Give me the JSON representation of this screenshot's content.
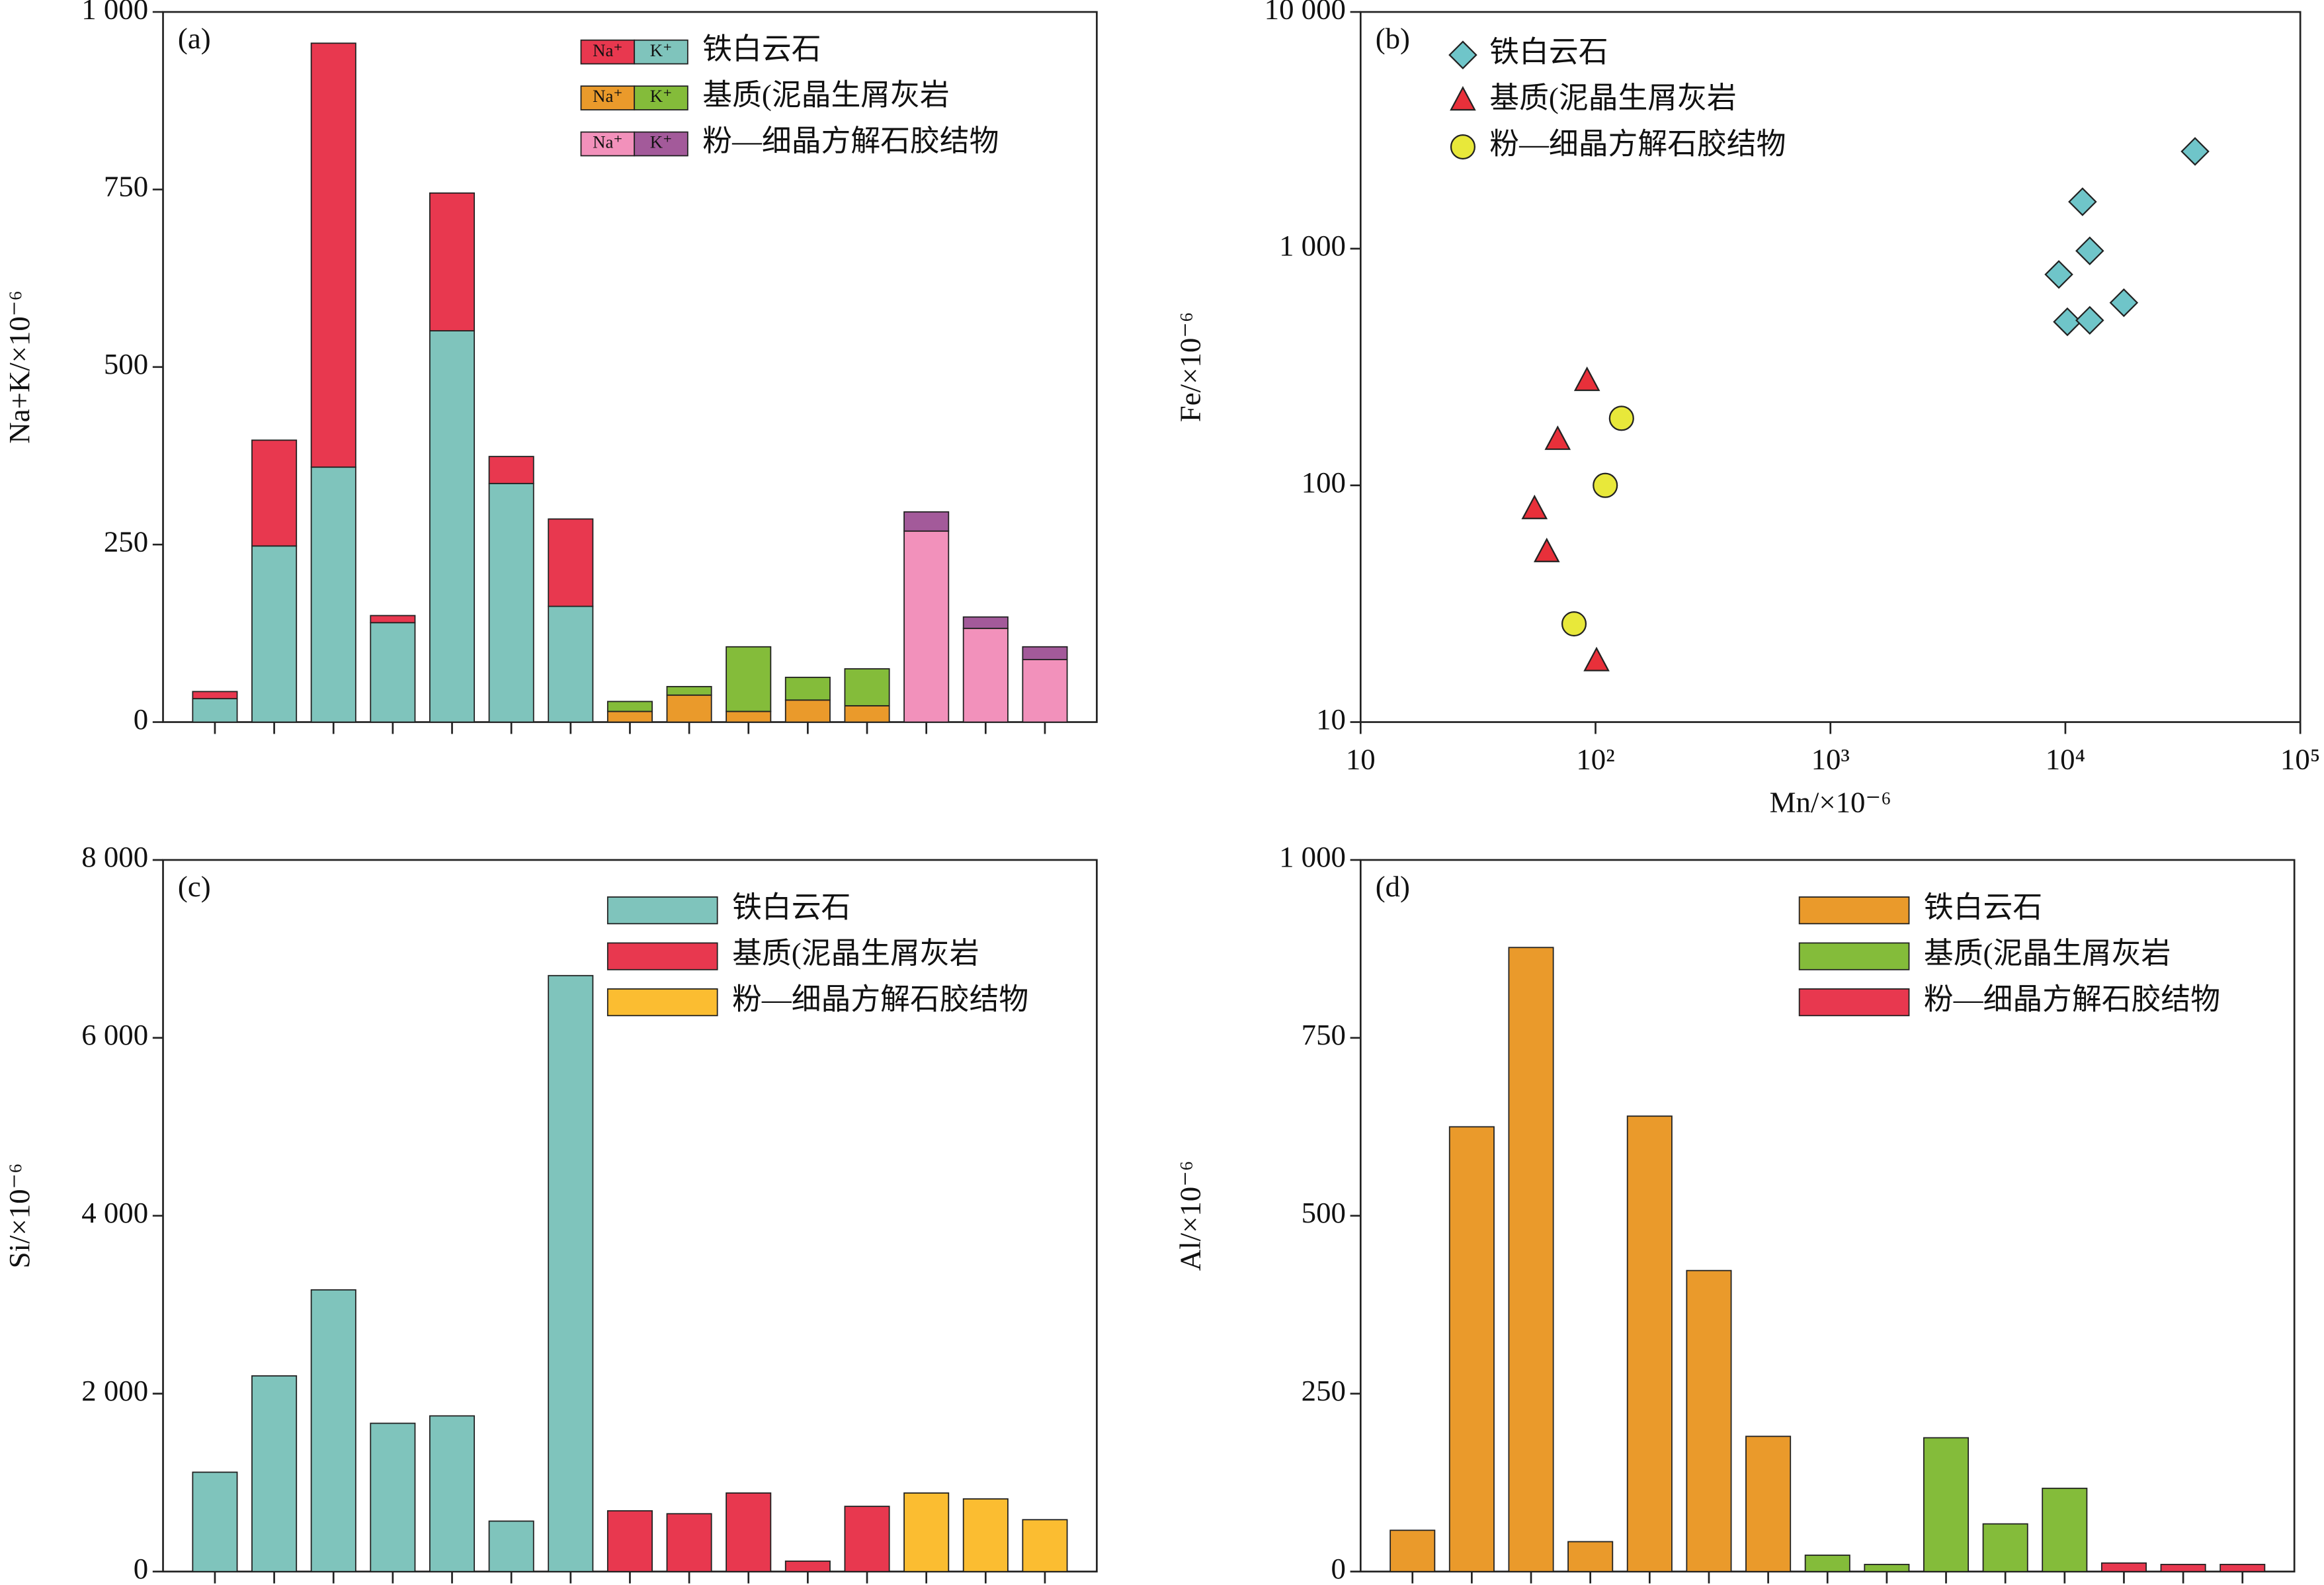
{
  "chart_data": [
    {
      "type": "stacked_bar",
      "title": "(a)",
      "y_label": "Na+K/×10⁻⁶",
      "categories": [
        null,
        null,
        null,
        null,
        null,
        null,
        null,
        null,
        null,
        null,
        null,
        null,
        null,
        null,
        null
      ],
      "ylim": [
        0,
        1000
      ],
      "yticks": [
        0,
        250,
        500,
        750,
        {
          "value": 1000,
          "label": "1 000"
        }
      ],
      "groups": [
        {
          "name": "铁白云石",
          "stack_order": [
            1,
            0
          ],
          "series": [
            {
              "name": "Na⁺",
              "color": "#e8384f",
              "values": [
                10,
                149,
                597,
                10,
                194,
                38,
                123,
                null,
                null,
                null,
                null,
                null,
                null,
                null,
                null
              ]
            },
            {
              "name": "K⁺",
              "color": "#7fc4bc",
              "values": [
                33,
                248,
                359,
                140,
                551,
                336,
                163,
                null,
                null,
                null,
                null,
                null,
                null,
                null,
                null
              ]
            }
          ]
        },
        {
          "name": "基质(泥晶生屑灰岩",
          "stack_order": [
            0,
            1
          ],
          "series": [
            {
              "name": "Na⁺",
              "color": "#ea9a2b",
              "values": [
                null,
                null,
                null,
                null,
                null,
                null,
                null,
                15,
                38,
                15,
                31,
                23,
                null,
                null,
                null
              ]
            },
            {
              "name": "K⁺",
              "color": "#84bc3a",
              "values": [
                null,
                null,
                null,
                null,
                null,
                null,
                null,
                14,
                12,
                91,
                32,
                52,
                null,
                null,
                null
              ]
            }
          ]
        },
        {
          "name": "粉—细晶方解石胶结物",
          "stack_order": [
            0,
            1
          ],
          "series": [
            {
              "name": "Na⁺",
              "color": "#f291bb",
              "values": [
                null,
                null,
                null,
                null,
                null,
                null,
                null,
                null,
                null,
                null,
                null,
                null,
                269,
                132,
                88
              ]
            },
            {
              "name": "K⁺",
              "color": "#a35a9a",
              "values": [
                null,
                null,
                null,
                null,
                null,
                null,
                null,
                null,
                null,
                null,
                null,
                null,
                27,
                16,
                18
              ]
            }
          ]
        }
      ]
    },
    {
      "type": "scatter",
      "title": "(b)",
      "x_label": "Mn/×10⁻⁶",
      "y_label": "Fe/×10⁻⁶",
      "xscale": "log",
      "yscale": "log",
      "xlim": [
        10,
        100000
      ],
      "xticks": [
        10,
        {
          "value": 100,
          "label": "10²"
        },
        {
          "value": 1000,
          "label": "10³"
        },
        {
          "value": 10000,
          "label": "10⁴"
        },
        {
          "value": 100000,
          "label": "10⁵"
        }
      ],
      "ylim": [
        10,
        10000
      ],
      "yticks": [
        10,
        100,
        {
          "value": 1000,
          "label": "1 000"
        },
        {
          "value": 10000,
          "label": "10 000"
        }
      ],
      "series": [
        {
          "name": "铁白云石",
          "marker": "diamond",
          "color": "#6fc5c9",
          "x": [
            35650,
            11830,
            12700,
            9380,
            10200,
            12700,
            17740
          ],
          "values": [
            2575,
            1578,
            979,
            778,
            491,
            498,
            591
          ]
        },
        {
          "name": "基质(泥晶生屑灰岩",
          "marker": "triangle",
          "color": "#e8303a",
          "x": [
            92,
            69,
            55,
            62,
            101
          ],
          "values": [
            275,
            155,
            79,
            52,
            18
          ]
        },
        {
          "name": "粉—细晶方解石胶结物",
          "marker": "circle",
          "color": "#e8e83a",
          "x": [
            129,
            110,
            81
          ],
          "values": [
            192,
            100,
            26
          ]
        }
      ]
    },
    {
      "type": "bar",
      "title": "(c)",
      "y_label": "Si/×10⁻⁶",
      "categories": [
        null,
        null,
        null,
        null,
        null,
        null,
        null,
        null,
        null,
        null,
        null,
        null,
        null,
        null,
        null
      ],
      "ylim": [
        0,
        8000
      ],
      "yticks": [
        0,
        {
          "value": 2000,
          "label": "2 000"
        },
        {
          "value": 4000,
          "label": "4 000"
        },
        {
          "value": 6000,
          "label": "6 000"
        },
        {
          "value": 8000,
          "label": "8 000"
        }
      ],
      "series": [
        {
          "name": "铁白云石",
          "color": "#7fc4bc",
          "values": [
            1117,
            2200,
            3167,
            1667,
            1750,
            567,
            6700,
            null,
            null,
            null,
            null,
            null,
            null,
            null,
            null
          ]
        },
        {
          "name": "基质(泥晶生屑灰岩",
          "color": "#e8384f",
          "values": [
            null,
            null,
            null,
            null,
            null,
            null,
            null,
            683,
            650,
            883,
            117,
            733,
            null,
            null,
            null
          ]
        },
        {
          "name": "粉—细晶方解石胶结物",
          "color": "#fbbd31",
          "values": [
            null,
            null,
            null,
            null,
            null,
            null,
            null,
            null,
            null,
            null,
            null,
            null,
            883,
            817,
            583
          ]
        }
      ]
    },
    {
      "type": "bar",
      "title": "(d)",
      "y_label": "Al/×10⁻⁶",
      "categories": [
        null,
        null,
        null,
        null,
        null,
        null,
        null,
        null,
        null,
        null,
        null,
        null,
        null,
        null,
        null
      ],
      "ylim": [
        0,
        1000
      ],
      "yticks": [
        0,
        250,
        500,
        750,
        {
          "value": 1000,
          "label": "1 000"
        }
      ],
      "series": [
        {
          "name": "铁白云石",
          "color": "#ea9a2b",
          "values": [
            58,
            625,
            877,
            42,
            640,
            423,
            190,
            null,
            null,
            null,
            null,
            null,
            null,
            null,
            null
          ]
        },
        {
          "name": "基质(泥晶生屑灰岩",
          "color": "#84bc3a",
          "values": [
            null,
            null,
            null,
            null,
            null,
            null,
            null,
            23,
            10,
            188,
            67,
            117,
            null,
            null,
            null
          ]
        },
        {
          "name": "粉—细晶方解石胶结物",
          "color": "#e8384f",
          "values": [
            null,
            null,
            null,
            null,
            null,
            null,
            null,
            null,
            null,
            null,
            null,
            null,
            12,
            10,
            10
          ]
        }
      ]
    }
  ]
}
